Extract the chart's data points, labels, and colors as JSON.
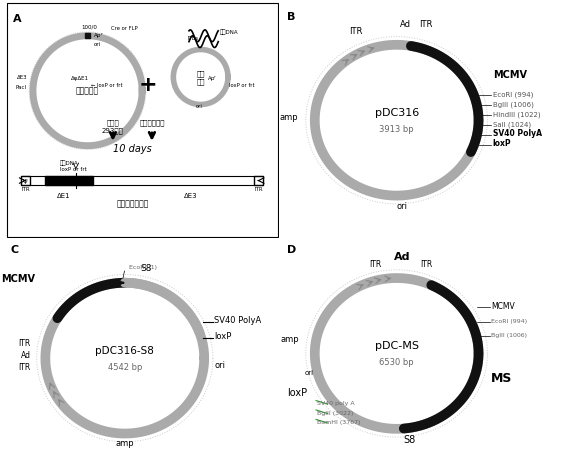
{
  "background": "#ffffff",
  "gray": "#aaaaaa",
  "dark": "#111111",
  "dotted": "#cccccc",
  "panel_B": {
    "title": "pDC316",
    "subtitle": "3913 bp",
    "restriction_sites": [
      "EcoRI (994)",
      "BglII (1006)",
      "HindIII (1022)",
      "SalI (1024)",
      "SV40 PolyA",
      "loxP"
    ]
  },
  "panel_C": {
    "title": "pDC316-S8",
    "subtitle": "4542 bp"
  },
  "panel_D": {
    "title": "pDC-MS",
    "subtitle": "6530 bp"
  }
}
